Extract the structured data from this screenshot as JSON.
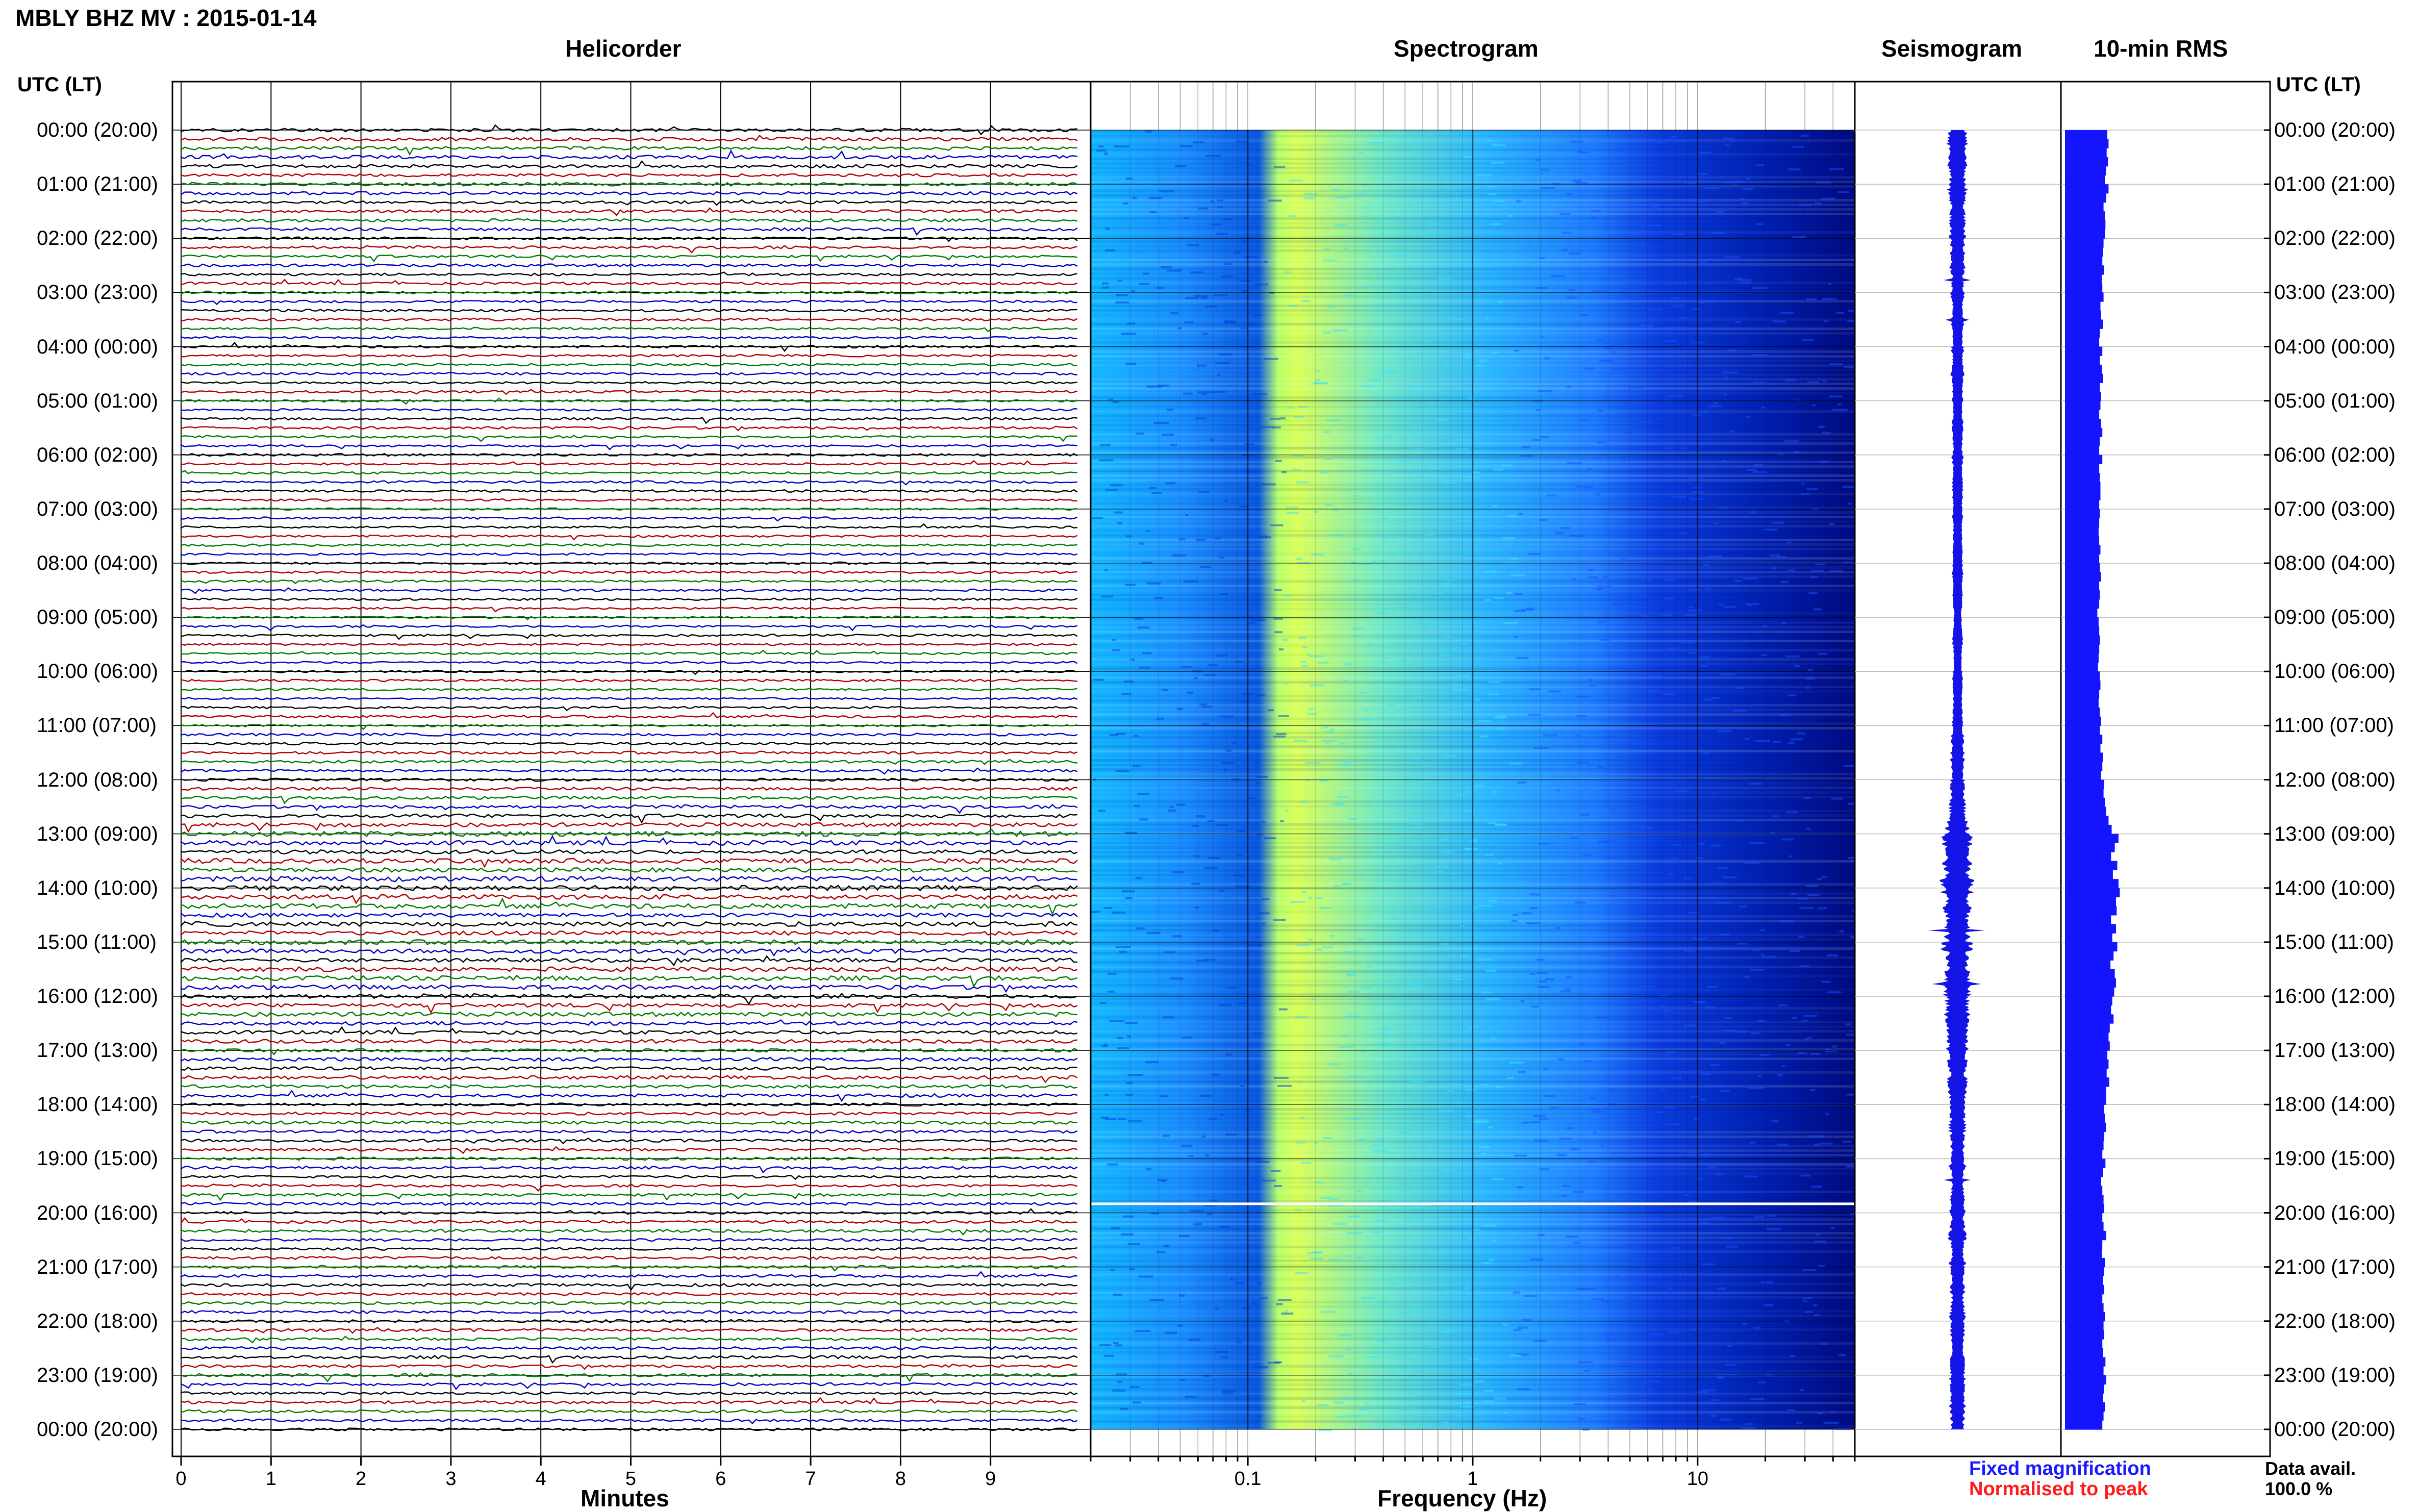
{
  "title": "MBLY BHZ MV : 2015-01-14",
  "panels": {
    "helicorder": "Helicorder",
    "spectrogram": "Spectrogram",
    "seismogram": "Seismogram",
    "rms": "10-min RMS"
  },
  "time_axis_label": "UTC (LT)",
  "time_labels": [
    "00:00 (20:00)",
    "01:00 (21:00)",
    "02:00 (22:00)",
    "03:00 (23:00)",
    "04:00 (00:00)",
    "05:00 (01:00)",
    "06:00 (02:00)",
    "07:00 (03:00)",
    "08:00 (04:00)",
    "09:00 (05:00)",
    "10:00 (06:00)",
    "11:00 (07:00)",
    "12:00 (08:00)",
    "13:00 (09:00)",
    "14:00 (10:00)",
    "15:00 (11:00)",
    "16:00 (12:00)",
    "17:00 (13:00)",
    "18:00 (14:00)",
    "19:00 (15:00)",
    "20:00 (16:00)",
    "21:00 (17:00)",
    "22:00 (18:00)",
    "23:00 (19:00)",
    "00:00 (20:00)"
  ],
  "legend": {
    "fixed": "Fixed magnification",
    "normalised": "Normalised to peak",
    "data_avail_label": "Data avail.",
    "data_avail_value": "100.0 %"
  },
  "colors": {
    "trace_cycle": [
      "#000000",
      "#b00000",
      "#007a00",
      "#0000c8"
    ],
    "seismogram": "#1414e6",
    "rms": "#1414ff",
    "spectrogram_low": "#00007a",
    "spectrogram_mid": "#2fb8ff",
    "spectrogram_high": "#e8ff4a",
    "legend_fixed": "#1a1aff",
    "legend_normalised": "#ff1a1a"
  },
  "chart_data": [
    {
      "type": "line",
      "name": "Helicorder",
      "title": "Helicorder",
      "xlabel": "Minutes",
      "ylabel": "UTC (LT)",
      "xlim": [
        0,
        10
      ],
      "x_ticks": [
        0,
        1,
        2,
        3,
        4,
        5,
        6,
        7,
        8,
        9
      ],
      "lines_per_hour": 6,
      "hours": 24,
      "grid": true
    },
    {
      "type": "heatmap",
      "name": "Spectrogram",
      "title": "Spectrogram",
      "xlabel": "Frequency (Hz)",
      "x_scale": "log",
      "xlim": [
        0.02,
        50
      ],
      "x_tick_labels": [
        "0.1",
        "1",
        "10"
      ],
      "x_ticks": [
        0.1,
        1,
        10
      ],
      "data_gap_utc": "19:50",
      "grid": true
    },
    {
      "type": "line",
      "name": "Seismogram",
      "title": "Seismogram",
      "hours": 24
    },
    {
      "type": "bar",
      "name": "10-min RMS",
      "title": "10-min RMS",
      "interval_minutes": 10,
      "hours": 24,
      "relative_values": [
        0.68,
        0.7,
        0.67,
        0.69,
        0.66,
        0.64,
        0.7,
        0.66,
        0.62,
        0.64,
        0.65,
        0.64,
        0.62,
        0.61,
        0.6,
        0.63,
        0.59,
        0.6,
        0.62,
        0.57,
        0.58,
        0.61,
        0.56,
        0.55,
        0.6,
        0.56,
        0.59,
        0.61,
        0.56,
        0.58,
        0.57,
        0.55,
        0.58,
        0.6,
        0.56,
        0.55,
        0.6,
        0.55,
        0.56,
        0.57,
        0.57,
        0.55,
        0.56,
        0.55,
        0.54,
        0.55,
        0.57,
        0.55,
        0.56,
        0.58,
        0.55,
        0.56,
        0.55,
        0.52,
        0.54,
        0.55,
        0.56,
        0.55,
        0.54,
        0.53,
        0.56,
        0.57,
        0.55,
        0.54,
        0.56,
        0.58,
        0.56,
        0.6,
        0.57,
        0.61,
        0.6,
        0.58,
        0.63,
        0.62,
        0.64,
        0.66,
        0.7,
        0.75,
        0.86,
        0.8,
        0.74,
        0.84,
        0.77,
        0.86,
        0.88,
        0.82,
        0.83,
        0.74,
        0.82,
        0.76,
        0.84,
        0.78,
        0.73,
        0.8,
        0.82,
        0.79,
        0.76,
        0.74,
        0.78,
        0.72,
        0.7,
        0.72,
        0.68,
        0.7,
        0.67,
        0.71,
        0.66,
        0.66,
        0.63,
        0.64,
        0.66,
        0.63,
        0.62,
        0.6,
        0.65,
        0.61,
        0.58,
        0.6,
        0.62,
        0.63,
        0.6,
        0.62,
        0.66,
        0.6,
        0.59,
        0.64,
        0.63,
        0.61,
        0.63,
        0.6,
        0.62,
        0.64,
        0.62,
        0.63,
        0.6,
        0.61,
        0.65,
        0.62,
        0.66,
        0.63,
        0.61,
        0.64,
        0.62,
        0.6
      ]
    }
  ]
}
